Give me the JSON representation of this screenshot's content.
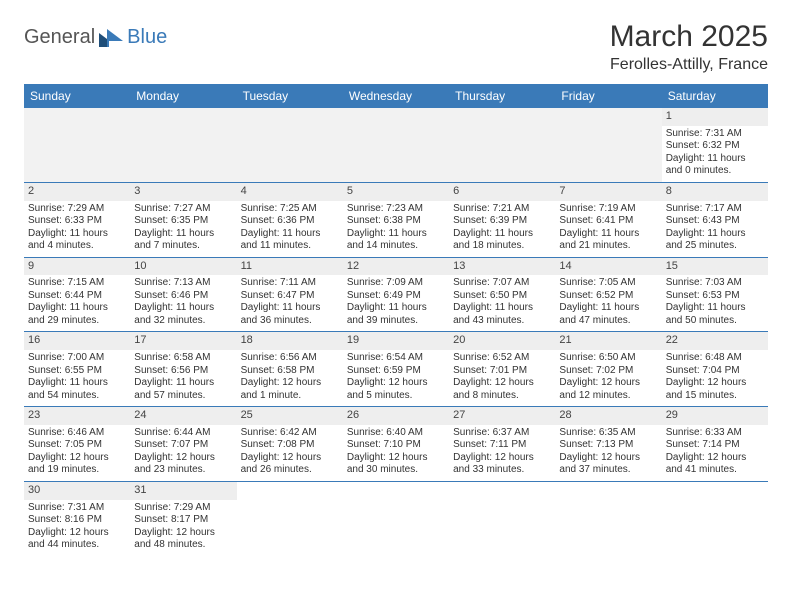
{
  "logo": {
    "general": "General",
    "blue": "Blue"
  },
  "title": "March 2025",
  "location": "Ferolles-Attilly, France",
  "colors": {
    "header_bg": "#3a7ab8",
    "header_text": "#ffffff",
    "daynum_bg": "#eeeeee",
    "border": "#3a7ab8",
    "logo_gray": "#555555",
    "logo_blue": "#3a7ab8",
    "text": "#333333",
    "page_bg": "#ffffff"
  },
  "day_headers": [
    "Sunday",
    "Monday",
    "Tuesday",
    "Wednesday",
    "Thursday",
    "Friday",
    "Saturday"
  ],
  "weeks": [
    [
      null,
      null,
      null,
      null,
      null,
      null,
      {
        "n": "1",
        "sr": "Sunrise: 7:31 AM",
        "ss": "Sunset: 6:32 PM",
        "dl1": "Daylight: 11 hours",
        "dl2": "and 0 minutes."
      }
    ],
    [
      {
        "n": "2",
        "sr": "Sunrise: 7:29 AM",
        "ss": "Sunset: 6:33 PM",
        "dl1": "Daylight: 11 hours",
        "dl2": "and 4 minutes."
      },
      {
        "n": "3",
        "sr": "Sunrise: 7:27 AM",
        "ss": "Sunset: 6:35 PM",
        "dl1": "Daylight: 11 hours",
        "dl2": "and 7 minutes."
      },
      {
        "n": "4",
        "sr": "Sunrise: 7:25 AM",
        "ss": "Sunset: 6:36 PM",
        "dl1": "Daylight: 11 hours",
        "dl2": "and 11 minutes."
      },
      {
        "n": "5",
        "sr": "Sunrise: 7:23 AM",
        "ss": "Sunset: 6:38 PM",
        "dl1": "Daylight: 11 hours",
        "dl2": "and 14 minutes."
      },
      {
        "n": "6",
        "sr": "Sunrise: 7:21 AM",
        "ss": "Sunset: 6:39 PM",
        "dl1": "Daylight: 11 hours",
        "dl2": "and 18 minutes."
      },
      {
        "n": "7",
        "sr": "Sunrise: 7:19 AM",
        "ss": "Sunset: 6:41 PM",
        "dl1": "Daylight: 11 hours",
        "dl2": "and 21 minutes."
      },
      {
        "n": "8",
        "sr": "Sunrise: 7:17 AM",
        "ss": "Sunset: 6:43 PM",
        "dl1": "Daylight: 11 hours",
        "dl2": "and 25 minutes."
      }
    ],
    [
      {
        "n": "9",
        "sr": "Sunrise: 7:15 AM",
        "ss": "Sunset: 6:44 PM",
        "dl1": "Daylight: 11 hours",
        "dl2": "and 29 minutes."
      },
      {
        "n": "10",
        "sr": "Sunrise: 7:13 AM",
        "ss": "Sunset: 6:46 PM",
        "dl1": "Daylight: 11 hours",
        "dl2": "and 32 minutes."
      },
      {
        "n": "11",
        "sr": "Sunrise: 7:11 AM",
        "ss": "Sunset: 6:47 PM",
        "dl1": "Daylight: 11 hours",
        "dl2": "and 36 minutes."
      },
      {
        "n": "12",
        "sr": "Sunrise: 7:09 AM",
        "ss": "Sunset: 6:49 PM",
        "dl1": "Daylight: 11 hours",
        "dl2": "and 39 minutes."
      },
      {
        "n": "13",
        "sr": "Sunrise: 7:07 AM",
        "ss": "Sunset: 6:50 PM",
        "dl1": "Daylight: 11 hours",
        "dl2": "and 43 minutes."
      },
      {
        "n": "14",
        "sr": "Sunrise: 7:05 AM",
        "ss": "Sunset: 6:52 PM",
        "dl1": "Daylight: 11 hours",
        "dl2": "and 47 minutes."
      },
      {
        "n": "15",
        "sr": "Sunrise: 7:03 AM",
        "ss": "Sunset: 6:53 PM",
        "dl1": "Daylight: 11 hours",
        "dl2": "and 50 minutes."
      }
    ],
    [
      {
        "n": "16",
        "sr": "Sunrise: 7:00 AM",
        "ss": "Sunset: 6:55 PM",
        "dl1": "Daylight: 11 hours",
        "dl2": "and 54 minutes."
      },
      {
        "n": "17",
        "sr": "Sunrise: 6:58 AM",
        "ss": "Sunset: 6:56 PM",
        "dl1": "Daylight: 11 hours",
        "dl2": "and 57 minutes."
      },
      {
        "n": "18",
        "sr": "Sunrise: 6:56 AM",
        "ss": "Sunset: 6:58 PM",
        "dl1": "Daylight: 12 hours",
        "dl2": "and 1 minute."
      },
      {
        "n": "19",
        "sr": "Sunrise: 6:54 AM",
        "ss": "Sunset: 6:59 PM",
        "dl1": "Daylight: 12 hours",
        "dl2": "and 5 minutes."
      },
      {
        "n": "20",
        "sr": "Sunrise: 6:52 AM",
        "ss": "Sunset: 7:01 PM",
        "dl1": "Daylight: 12 hours",
        "dl2": "and 8 minutes."
      },
      {
        "n": "21",
        "sr": "Sunrise: 6:50 AM",
        "ss": "Sunset: 7:02 PM",
        "dl1": "Daylight: 12 hours",
        "dl2": "and 12 minutes."
      },
      {
        "n": "22",
        "sr": "Sunrise: 6:48 AM",
        "ss": "Sunset: 7:04 PM",
        "dl1": "Daylight: 12 hours",
        "dl2": "and 15 minutes."
      }
    ],
    [
      {
        "n": "23",
        "sr": "Sunrise: 6:46 AM",
        "ss": "Sunset: 7:05 PM",
        "dl1": "Daylight: 12 hours",
        "dl2": "and 19 minutes."
      },
      {
        "n": "24",
        "sr": "Sunrise: 6:44 AM",
        "ss": "Sunset: 7:07 PM",
        "dl1": "Daylight: 12 hours",
        "dl2": "and 23 minutes."
      },
      {
        "n": "25",
        "sr": "Sunrise: 6:42 AM",
        "ss": "Sunset: 7:08 PM",
        "dl1": "Daylight: 12 hours",
        "dl2": "and 26 minutes."
      },
      {
        "n": "26",
        "sr": "Sunrise: 6:40 AM",
        "ss": "Sunset: 7:10 PM",
        "dl1": "Daylight: 12 hours",
        "dl2": "and 30 minutes."
      },
      {
        "n": "27",
        "sr": "Sunrise: 6:37 AM",
        "ss": "Sunset: 7:11 PM",
        "dl1": "Daylight: 12 hours",
        "dl2": "and 33 minutes."
      },
      {
        "n": "28",
        "sr": "Sunrise: 6:35 AM",
        "ss": "Sunset: 7:13 PM",
        "dl1": "Daylight: 12 hours",
        "dl2": "and 37 minutes."
      },
      {
        "n": "29",
        "sr": "Sunrise: 6:33 AM",
        "ss": "Sunset: 7:14 PM",
        "dl1": "Daylight: 12 hours",
        "dl2": "and 41 minutes."
      }
    ],
    [
      {
        "n": "30",
        "sr": "Sunrise: 7:31 AM",
        "ss": "Sunset: 8:16 PM",
        "dl1": "Daylight: 12 hours",
        "dl2": "and 44 minutes."
      },
      {
        "n": "31",
        "sr": "Sunrise: 7:29 AM",
        "ss": "Sunset: 8:17 PM",
        "dl1": "Daylight: 12 hours",
        "dl2": "and 48 minutes."
      },
      null,
      null,
      null,
      null,
      null
    ]
  ]
}
